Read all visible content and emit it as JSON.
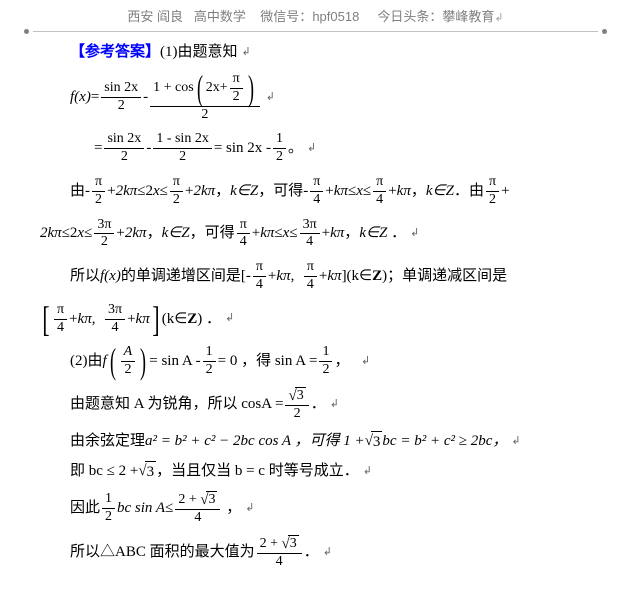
{
  "header": {
    "location": "西安 阎良",
    "subject": "高中数学",
    "wechat_label": "微信号：",
    "wechat": "hpf0518",
    "toutiao_label": "今日头条：",
    "toutiao": "攀峰教育",
    "arrow": "↲"
  },
  "colors": {
    "answer_label": "#0000ff",
    "text": "#000000",
    "header_text": "#808080",
    "divider": "#c0c0c0",
    "background": "#ffffff"
  },
  "fonts": {
    "body_size": 15,
    "header_size": 13,
    "frac_size": 14
  },
  "math": {
    "answer_label": "【参考答案】",
    "part1_intro": "(1)由题意知",
    "fx": "f(x)",
    "eq": " = ",
    "minus": " - ",
    "plus": " + ",
    "sin2x": "sin 2x",
    "cos_expr_prefix": "1 + cos",
    "two": "2",
    "twox": "2x",
    "pi": "π",
    "four": "4",
    "threepi": "3π",
    "one": "1",
    "one_minus_sin2x": "1 - sin 2x",
    "sin2x_minus": " = sin 2x - ",
    "half_period": "。",
    "period": "．",
    "comma": "，",
    "you": "由 ",
    "you_minus": " - ",
    "twokpi": "2kπ",
    "le": "≤",
    "x": "x",
    "kz": "k∈Z",
    "kede": "可得",
    "kpi": "kπ",
    "suoyi": "所以 ",
    "fx_italic": "f(x)",
    "mono_inc": "的单调递增区间是[-",
    "mono_inc2": "](k∈",
    "Z": "Z",
    "mono_inc3": ")；单调递减区间是",
    "bracket_content": "(k∈",
    "part2_intro": "(2)由 ",
    "f_of": "f",
    "A": "A",
    "sinA": " = sin A - ",
    "eq0": " = 0 ，得 sin A = ",
    "comma2": "，",
    "acute": "由题意知 A 为锐角，所以 cosA = ",
    "cosine_law": "由余弦定理 ",
    "a2": "a² = b² + c² − 2bc cos A ，可得 1 + ",
    "sqrt3": "3",
    "bc_eq": "bc = b² + c² ≥ 2bc，",
    "ji": "即 bc ≤ 2 + ",
    "dangqie": "，当且仅当 b = c 时等号成立．",
    "yinci": "因此",
    "bcsinA": "bc sin A",
    "two_plus_sqrt3": "2 + ",
    "suoyi2": "所以△ABC 面积的最大值为",
    "pm": "↲"
  }
}
